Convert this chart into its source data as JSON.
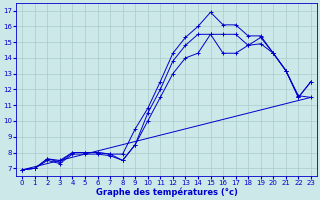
{
  "xlabel": "Graphe des températures (°c)",
  "background_color": "#cce8e8",
  "grid_color": "#aacccc",
  "line_color": "#0000cc",
  "ylim": [
    6.5,
    17.5
  ],
  "xlim": [
    -0.5,
    23.5
  ],
  "yticks": [
    7,
    8,
    9,
    10,
    11,
    12,
    13,
    14,
    15,
    16,
    17
  ],
  "xticks": [
    0,
    1,
    2,
    3,
    4,
    5,
    6,
    7,
    8,
    9,
    10,
    11,
    12,
    13,
    14,
    15,
    16,
    17,
    18,
    19,
    20,
    21,
    22,
    23
  ],
  "line1_x": [
    0,
    1,
    2,
    3,
    4,
    5,
    6,
    7,
    8,
    9,
    10,
    11,
    12,
    13,
    14,
    15,
    16,
    17,
    18,
    19,
    20,
    21,
    22,
    23
  ],
  "line1_y": [
    6.9,
    7.0,
    7.6,
    7.5,
    8.0,
    8.0,
    8.0,
    7.9,
    7.9,
    9.5,
    10.8,
    12.5,
    14.3,
    15.3,
    16.0,
    16.9,
    16.1,
    16.1,
    15.4,
    15.4,
    14.3,
    13.2,
    11.6,
    11.5
  ],
  "line2_x": [
    0,
    1,
    2,
    3,
    4,
    5,
    6,
    7,
    8,
    9,
    10,
    11,
    12,
    13,
    14,
    15,
    16,
    17,
    18,
    19,
    20,
    21,
    22,
    23
  ],
  "line2_y": [
    6.9,
    7.0,
    7.6,
    7.4,
    8.0,
    8.0,
    8.0,
    7.9,
    7.5,
    8.5,
    10.5,
    12.0,
    13.8,
    14.8,
    15.5,
    15.5,
    15.5,
    15.5,
    14.8,
    15.3,
    14.3,
    13.2,
    11.5,
    12.5
  ],
  "line3_x": [
    0,
    1,
    2,
    3,
    4,
    5,
    6,
    7,
    8,
    9,
    10,
    11,
    12,
    13,
    14,
    15,
    16,
    17,
    18,
    19,
    20,
    21,
    22,
    23
  ],
  "line3_y": [
    6.9,
    7.0,
    7.5,
    7.3,
    7.9,
    7.9,
    7.9,
    7.8,
    7.5,
    8.5,
    10.0,
    11.5,
    13.0,
    14.0,
    14.3,
    15.5,
    14.3,
    14.3,
    14.8,
    14.9,
    14.3,
    13.2,
    11.5,
    12.5
  ],
  "line4_x": [
    0,
    23
  ],
  "line4_y": [
    6.9,
    11.5
  ]
}
